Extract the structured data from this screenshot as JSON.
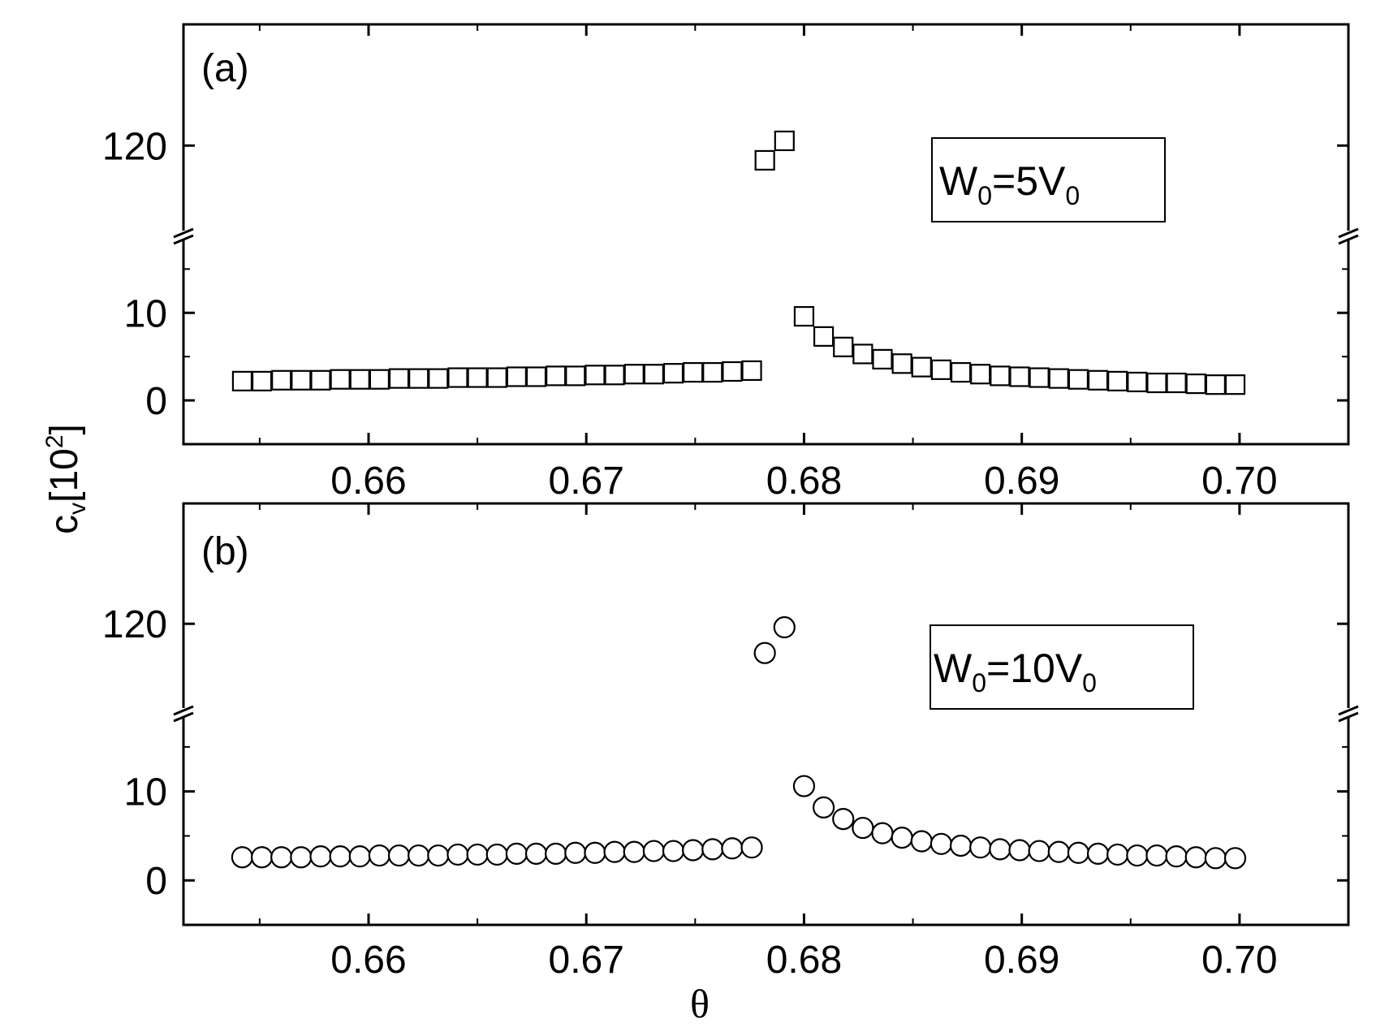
{
  "chart_data": [
    {
      "panel": "(a)",
      "type": "scatter",
      "marker": "square",
      "legend": {
        "main": "W",
        "sub1": "0",
        "mid": "=5V",
        "sub2": "0"
      },
      "x_ticks": [
        "0.66",
        "0.67",
        "0.68",
        "0.69",
        "0.70"
      ],
      "x_tick_values": [
        0.66,
        0.67,
        0.68,
        0.69,
        0.7
      ],
      "xlim": [
        0.6515,
        0.705
      ],
      "y_lower_ticks": [
        "0",
        "10"
      ],
      "y_lower_tick_values": [
        0,
        10
      ],
      "y_lower_range": [
        -5,
        18
      ],
      "y_upper_ticks": [
        "120"
      ],
      "y_upper_tick_values": [
        120
      ],
      "y_upper_range": [
        106,
        136
      ],
      "points": [
        [
          0.6542,
          2.2
        ],
        [
          0.6551,
          2.2
        ],
        [
          0.656,
          2.3
        ],
        [
          0.6569,
          2.3
        ],
        [
          0.6578,
          2.3
        ],
        [
          0.6587,
          2.4
        ],
        [
          0.6596,
          2.4
        ],
        [
          0.6605,
          2.4
        ],
        [
          0.6614,
          2.5
        ],
        [
          0.6623,
          2.5
        ],
        [
          0.6632,
          2.5
        ],
        [
          0.6641,
          2.6
        ],
        [
          0.665,
          2.6
        ],
        [
          0.6659,
          2.6
        ],
        [
          0.6668,
          2.7
        ],
        [
          0.6677,
          2.7
        ],
        [
          0.6686,
          2.8
        ],
        [
          0.6695,
          2.8
        ],
        [
          0.6704,
          2.9
        ],
        [
          0.6713,
          2.9
        ],
        [
          0.6722,
          3.0
        ],
        [
          0.6731,
          3.0
        ],
        [
          0.674,
          3.1
        ],
        [
          0.6749,
          3.2
        ],
        [
          0.6758,
          3.2
        ],
        [
          0.6767,
          3.3
        ],
        [
          0.6776,
          3.4
        ],
        [
          0.6782,
          117.5
        ],
        [
          0.6791,
          120.8
        ],
        [
          0.68,
          9.6
        ],
        [
          0.6809,
          7.3
        ],
        [
          0.6818,
          6.1
        ],
        [
          0.6827,
          5.3
        ],
        [
          0.6836,
          4.7
        ],
        [
          0.6845,
          4.2
        ],
        [
          0.6854,
          3.8
        ],
        [
          0.6863,
          3.5
        ],
        [
          0.6872,
          3.2
        ],
        [
          0.6881,
          3.0
        ],
        [
          0.689,
          2.8
        ],
        [
          0.6899,
          2.7
        ],
        [
          0.6908,
          2.6
        ],
        [
          0.6917,
          2.5
        ],
        [
          0.6926,
          2.4
        ],
        [
          0.6935,
          2.3
        ],
        [
          0.6944,
          2.2
        ],
        [
          0.6953,
          2.1
        ],
        [
          0.6962,
          2.0
        ],
        [
          0.6971,
          2.0
        ],
        [
          0.698,
          1.9
        ],
        [
          0.6989,
          1.8
        ],
        [
          0.6998,
          1.8
        ]
      ]
    },
    {
      "panel": "(b)",
      "type": "scatter",
      "marker": "circle",
      "legend": {
        "main": "W",
        "sub1": "0",
        "mid": "=10V",
        "sub2": "0"
      },
      "x_ticks": [
        "0.66",
        "0.67",
        "0.68",
        "0.69",
        "0.70"
      ],
      "x_tick_values": [
        0.66,
        0.67,
        0.68,
        0.69,
        0.7
      ],
      "xlim": [
        0.6515,
        0.705
      ],
      "y_lower_ticks": [
        "0",
        "10"
      ],
      "y_lower_tick_values": [
        0,
        10
      ],
      "y_lower_range": [
        -5,
        18
      ],
      "y_upper_ticks": [
        "120"
      ],
      "y_upper_tick_values": [
        120
      ],
      "y_upper_range": [
        106,
        136
      ],
      "points": [
        [
          0.6542,
          2.6
        ],
        [
          0.6551,
          2.6
        ],
        [
          0.656,
          2.6
        ],
        [
          0.6569,
          2.6
        ],
        [
          0.6578,
          2.7
        ],
        [
          0.6587,
          2.7
        ],
        [
          0.6596,
          2.7
        ],
        [
          0.6605,
          2.8
        ],
        [
          0.6614,
          2.8
        ],
        [
          0.6623,
          2.8
        ],
        [
          0.6632,
          2.8
        ],
        [
          0.6641,
          2.9
        ],
        [
          0.665,
          2.9
        ],
        [
          0.6659,
          2.9
        ],
        [
          0.6668,
          3.0
        ],
        [
          0.6677,
          3.0
        ],
        [
          0.6686,
          3.0
        ],
        [
          0.6695,
          3.1
        ],
        [
          0.6704,
          3.1
        ],
        [
          0.6713,
          3.2
        ],
        [
          0.6722,
          3.2
        ],
        [
          0.6731,
          3.3
        ],
        [
          0.674,
          3.3
        ],
        [
          0.6749,
          3.4
        ],
        [
          0.6758,
          3.5
        ],
        [
          0.6767,
          3.6
        ],
        [
          0.6776,
          3.7
        ],
        [
          0.6782,
          115.0
        ],
        [
          0.6791,
          119.4
        ],
        [
          0.68,
          10.6
        ],
        [
          0.6809,
          8.2
        ],
        [
          0.6818,
          6.9
        ],
        [
          0.6827,
          5.9
        ],
        [
          0.6836,
          5.3
        ],
        [
          0.6845,
          4.8
        ],
        [
          0.6854,
          4.4
        ],
        [
          0.6863,
          4.1
        ],
        [
          0.6872,
          3.9
        ],
        [
          0.6881,
          3.7
        ],
        [
          0.689,
          3.5
        ],
        [
          0.6899,
          3.4
        ],
        [
          0.6908,
          3.3
        ],
        [
          0.6917,
          3.2
        ],
        [
          0.6926,
          3.1
        ],
        [
          0.6935,
          3.0
        ],
        [
          0.6944,
          2.9
        ],
        [
          0.6953,
          2.8
        ],
        [
          0.6962,
          2.8
        ],
        [
          0.6971,
          2.7
        ],
        [
          0.698,
          2.6
        ],
        [
          0.6989,
          2.5
        ],
        [
          0.6998,
          2.5
        ]
      ]
    }
  ],
  "axes": {
    "xlabel": "θ",
    "ylabel_main": "c",
    "ylabel_sub": "v",
    "ylabel_bracket_open": "[10",
    "ylabel_sup": "2",
    "ylabel_bracket_close": "]"
  }
}
